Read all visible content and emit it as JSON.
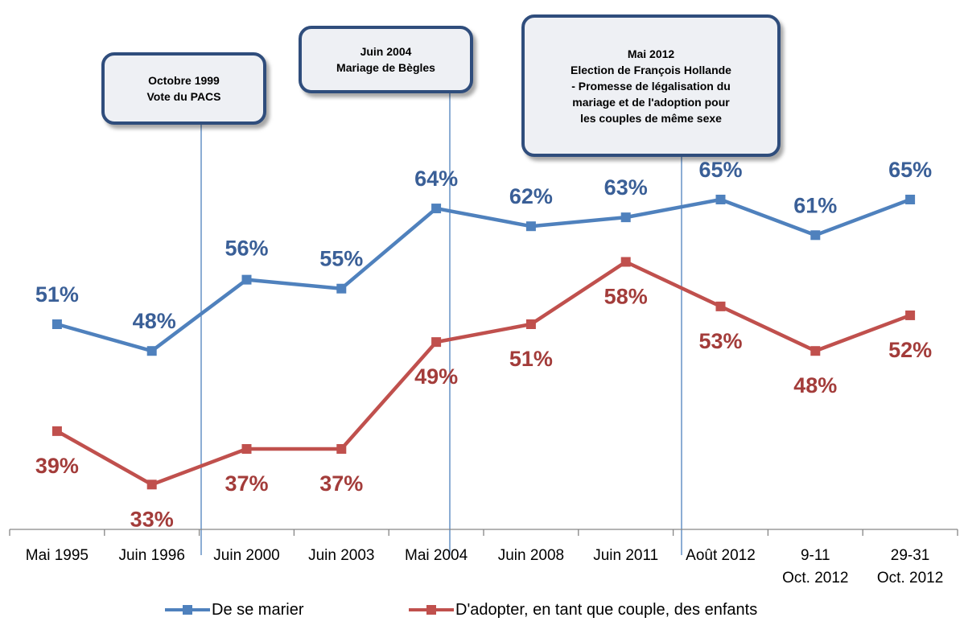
{
  "chart_data": {
    "type": "line",
    "categories": [
      [
        "Mai 1995"
      ],
      [
        "Juin 1996"
      ],
      [
        "Juin 2000"
      ],
      [
        "Juin 2003"
      ],
      [
        "Mai 2004"
      ],
      [
        "Juin 2008"
      ],
      [
        "Juin 2011"
      ],
      [
        "Août 2012"
      ],
      [
        "9-11",
        "Oct. 2012"
      ],
      [
        "29-31",
        "Oct. 2012"
      ]
    ],
    "series": [
      {
        "name": "De se marier",
        "color": "#4f81bd",
        "label_color": "#3a5f97",
        "values": [
          51,
          48,
          56,
          55,
          64,
          62,
          63,
          65,
          61,
          65
        ],
        "labels": [
          "51%",
          "48%",
          "56%",
          "55%",
          "64%",
          "62%",
          "63%",
          "65%",
          "61%",
          "65%"
        ]
      },
      {
        "name": "D'adopter, en tant que couple, des enfants",
        "color": "#c0504d",
        "label_color": "#a33c3a",
        "values": [
          39,
          33,
          37,
          37,
          49,
          51,
          58,
          53,
          48,
          52
        ],
        "labels": [
          "39%",
          "33%",
          "37%",
          "37%",
          "49%",
          "51%",
          "58%",
          "53%",
          "48%",
          "52%"
        ]
      }
    ],
    "ylim": [
      30,
      70
    ],
    "grid": false,
    "legend_position": "bottom",
    "annotations": [
      {
        "lines": [
          "Octobre 1999",
          "Vote du PACS"
        ]
      },
      {
        "lines": [
          "Juin 2004",
          "Mariage de Bègles"
        ]
      },
      {
        "lines": [
          "Mai 2012",
          "Election de François Hollande",
          "- Promesse de légalisation du",
          "mariage et de l'adoption pour",
          "les couples de même sexe"
        ]
      }
    ]
  }
}
